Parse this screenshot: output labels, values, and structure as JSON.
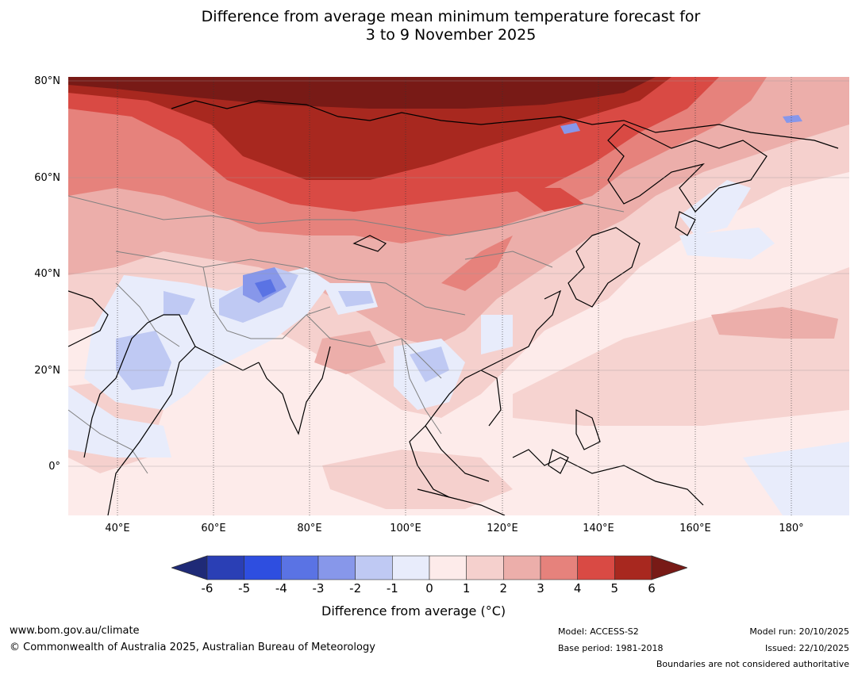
{
  "title": {
    "line1": "Difference from average mean minimum temperature forecast for",
    "line2": "3 to 9 November 2025"
  },
  "map": {
    "latitude_labels": [
      "80°N",
      "60°N",
      "40°N",
      "20°N",
      "0°"
    ],
    "longitude_labels": [
      "40°E",
      "60°E",
      "80°E",
      "100°E",
      "120°E",
      "140°E",
      "160°E",
      "180°"
    ]
  },
  "colorbar": {
    "title": "Difference from average ($^\\circ$C)",
    "title_display": "Difference from average (°C)",
    "ticks": [
      "-6",
      "-5",
      "-4",
      "-3",
      "-2",
      "-1",
      "0",
      "1",
      "2",
      "3",
      "4",
      "5",
      "6"
    ],
    "colors": [
      "#1f2a77",
      "#2a3fb5",
      "#2e4ee0",
      "#5a73e4",
      "#8797ea",
      "#bfc9f3",
      "#e8ecfb",
      "#fdebea",
      "#f5d0cd",
      "#ecaeaa",
      "#e6827c",
      "#d94a44",
      "#a8281f",
      "#781a16"
    ]
  },
  "footer": {
    "website": "www.bom.gov.au/climate",
    "copyright": "© Commonwealth of Australia 2025, Australian Bureau of Meteorology",
    "model": "Model: ACCESS-S2",
    "base_period": "Base period: 1981-2018",
    "model_run": "Model run: 20/10/2025",
    "issued": "Issued: 22/10/2025",
    "disclaimer": "Boundaries are not considered authoritative"
  }
}
